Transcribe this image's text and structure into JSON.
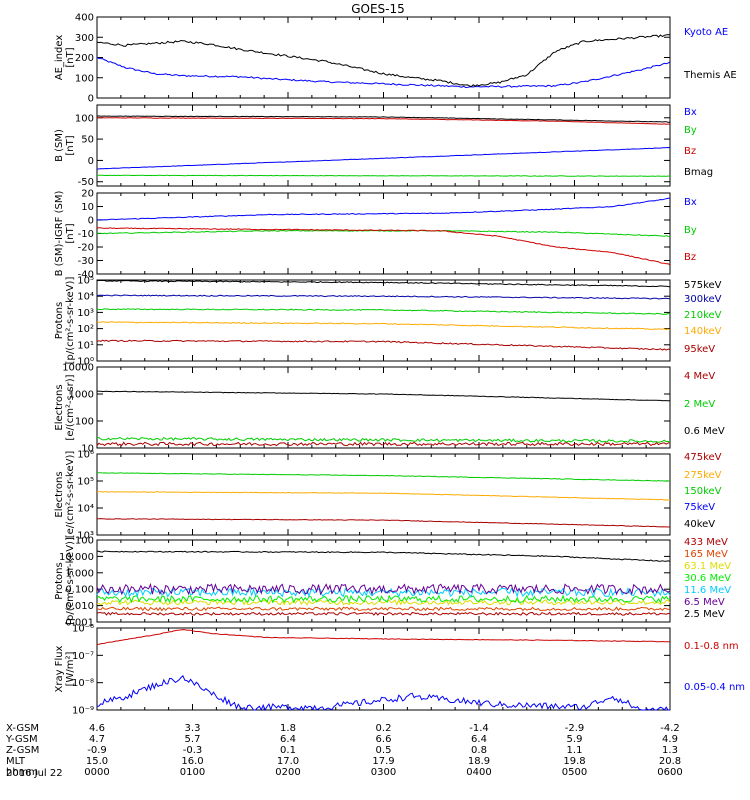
{
  "title": "GOES-15",
  "date_label": "2016 Jul 22",
  "colors": {
    "black": "#000000",
    "blue": "#0000ff",
    "red": "#cc0000",
    "green": "#00cc00",
    "orange": "#ffaa00",
    "darkblue": "#0000aa",
    "lime": "#00ee00",
    "cyan": "#00ccff",
    "yellow": "#dddd00",
    "purple": "#660099",
    "maroon": "#aa0000"
  },
  "chart_data": [
    {
      "type": "line",
      "id": "ae",
      "ylabel": "AE_index\n[nT]",
      "scale": "linear",
      "ylim": [
        0,
        400
      ],
      "yticks": [
        [
          0,
          "0"
        ],
        [
          100,
          "100"
        ],
        [
          200,
          "200"
        ],
        [
          300,
          "300"
        ],
        [
          400,
          "400"
        ]
      ],
      "series": [
        {
          "name": "Kyoto AE",
          "color": "#0000ff",
          "noise": 4,
          "values": [
            [
              0,
              200
            ],
            [
              5,
              150
            ],
            [
              10,
              120
            ],
            [
              15,
              110
            ],
            [
              25,
              105
            ],
            [
              30,
              95
            ],
            [
              40,
              80
            ],
            [
              50,
              70
            ],
            [
              60,
              60
            ],
            [
              65,
              55
            ],
            [
              75,
              58
            ],
            [
              80,
              60
            ],
            [
              85,
              80
            ],
            [
              90,
              110
            ],
            [
              95,
              140
            ],
            [
              100,
              175
            ]
          ]
        },
        {
          "name": "Themis AE",
          "color": "#000000",
          "noise": 5,
          "values": [
            [
              0,
              275
            ],
            [
              5,
              260
            ],
            [
              15,
              280
            ],
            [
              20,
              265
            ],
            [
              25,
              240
            ],
            [
              30,
              220
            ],
            [
              35,
              200
            ],
            [
              40,
              180
            ],
            [
              45,
              150
            ],
            [
              50,
              120
            ],
            [
              55,
              100
            ],
            [
              60,
              85
            ],
            [
              65,
              60
            ],
            [
              70,
              75
            ],
            [
              75,
              115
            ],
            [
              80,
              230
            ],
            [
              85,
              280
            ],
            [
              90,
              290
            ],
            [
              95,
              300
            ],
            [
              100,
              310
            ]
          ]
        }
      ]
    },
    {
      "type": "line",
      "id": "bsm",
      "ylabel": "B (SM)\n[nT]",
      "scale": "linear",
      "ylim": [
        -60,
        130
      ],
      "yticks": [
        [
          -50,
          "-50"
        ],
        [
          0,
          "0"
        ],
        [
          50,
          "50"
        ],
        [
          100,
          "100"
        ]
      ],
      "series": [
        {
          "name": "Bx",
          "color": "#0000ff",
          "noise": 0.5,
          "values": [
            [
              0,
              -20
            ],
            [
              50,
              5
            ],
            [
              100,
              30
            ]
          ]
        },
        {
          "name": "By",
          "color": "#00cc00",
          "noise": 0.5,
          "values": [
            [
              0,
              -35
            ],
            [
              50,
              -36
            ],
            [
              100,
              -37
            ]
          ]
        },
        {
          "name": "Bz",
          "color": "#cc0000",
          "noise": 0.5,
          "values": [
            [
              0,
              100
            ],
            [
              50,
              98
            ],
            [
              80,
              92
            ],
            [
              100,
              85
            ]
          ]
        },
        {
          "name": "Bmag",
          "color": "#000000",
          "noise": 0.5,
          "values": [
            [
              0,
              104
            ],
            [
              50,
              102
            ],
            [
              80,
              95
            ],
            [
              100,
              90
            ]
          ]
        }
      ]
    },
    {
      "type": "line",
      "id": "digrf",
      "ylabel": "B (SM)-IGRF (SM)\n[nT]",
      "scale": "linear",
      "ylim": [
        -40,
        20
      ],
      "yticks": [
        [
          -40,
          "-40"
        ],
        [
          -30,
          "-30"
        ],
        [
          -20,
          "-20"
        ],
        [
          -10,
          "-10"
        ],
        [
          0,
          "0"
        ],
        [
          10,
          "10"
        ],
        [
          20,
          "20"
        ]
      ],
      "series": [
        {
          "name": "Bx",
          "color": "#0000ff",
          "noise": 0.3,
          "values": [
            [
              0,
              0
            ],
            [
              30,
              4
            ],
            [
              60,
              5
            ],
            [
              80,
              8
            ],
            [
              90,
              10
            ],
            [
              100,
              16
            ]
          ]
        },
        {
          "name": "By",
          "color": "#00cc00",
          "noise": 0.3,
          "values": [
            [
              0,
              -10
            ],
            [
              30,
              -8
            ],
            [
              60,
              -8
            ],
            [
              80,
              -9
            ],
            [
              100,
              -12
            ]
          ]
        },
        {
          "name": "Bz",
          "color": "#cc0000",
          "noise": 0.3,
          "values": [
            [
              0,
              -6
            ],
            [
              30,
              -7
            ],
            [
              60,
              -8
            ],
            [
              70,
              -12
            ],
            [
              80,
              -20
            ],
            [
              90,
              -24
            ],
            [
              100,
              -33
            ]
          ]
        }
      ]
    },
    {
      "type": "line",
      "id": "protons_kev",
      "ylabel": "Protons\n[p/(cm²-s-sr-keV)]",
      "scale": "log",
      "ylim": [
        0,
        5
      ],
      "yticks": [
        [
          0,
          "10⁰"
        ],
        [
          1,
          "10¹"
        ],
        [
          2,
          "10²"
        ],
        [
          3,
          "10³"
        ],
        [
          4,
          "10⁴"
        ],
        [
          5,
          "10⁵"
        ]
      ],
      "series": [
        {
          "name": "575keV",
          "color": "#000000",
          "noise": 0.03,
          "values": [
            [
              0,
              4.95
            ],
            [
              50,
              4.85
            ],
            [
              100,
              4.6
            ]
          ]
        },
        {
          "name": "300keV",
          "color": "#0000aa",
          "noise": 0.03,
          "values": [
            [
              0,
              4.05
            ],
            [
              50,
              4.0
            ],
            [
              100,
              3.85
            ]
          ]
        },
        {
          "name": "210keV",
          "color": "#00cc00",
          "noise": 0.03,
          "values": [
            [
              0,
              3.2
            ],
            [
              50,
              3.15
            ],
            [
              100,
              2.9
            ]
          ]
        },
        {
          "name": "140keV",
          "color": "#ffaa00",
          "noise": 0.03,
          "values": [
            [
              0,
              2.4
            ],
            [
              50,
              2.3
            ],
            [
              100,
              1.95
            ]
          ]
        },
        {
          "name": "95keV",
          "color": "#aa0000",
          "noise": 0.04,
          "values": [
            [
              0,
              1.25
            ],
            [
              50,
              1.2
            ],
            [
              100,
              0.7
            ]
          ]
        }
      ]
    },
    {
      "type": "line",
      "id": "electrons_mev",
      "ylabel": "Electrons\n[e/(cm²-s-sr)]",
      "scale": "log",
      "ylim": [
        1,
        4
      ],
      "yticks": [
        [
          1,
          "10"
        ],
        [
          2,
          "100"
        ],
        [
          3,
          "1000"
        ],
        [
          4,
          "10000"
        ]
      ],
      "series": [
        {
          "name": "4 MeV",
          "color": "#aa0000",
          "noise": 0.06,
          "values": [
            [
              0,
              1.15
            ],
            [
              100,
              1.15
            ]
          ]
        },
        {
          "name": "2 MeV",
          "color": "#00cc00",
          "noise": 0.05,
          "values": [
            [
              0,
              1.35
            ],
            [
              100,
              1.25
            ]
          ]
        },
        {
          "name": "0.6 MeV",
          "color": "#000000",
          "noise": 0.01,
          "values": [
            [
              0,
              3.1
            ],
            [
              50,
              3.0
            ],
            [
              100,
              2.75
            ]
          ]
        }
      ]
    },
    {
      "type": "line",
      "id": "electrons_kev",
      "ylabel": "Electrons\n[e/(cm²-s-sr-keV)]",
      "scale": "log",
      "ylim": [
        3,
        6
      ],
      "yticks": [
        [
          3,
          "10³"
        ],
        [
          4,
          "10⁴"
        ],
        [
          5,
          "10⁵"
        ],
        [
          6,
          "10⁶"
        ]
      ],
      "series": [
        {
          "name": "475keV",
          "color": "#aa0000",
          "noise": 0.01,
          "values": [
            [
              0,
              3.6
            ],
            [
              50,
              3.55
            ],
            [
              100,
              3.3
            ]
          ]
        },
        {
          "name": "275keV",
          "color": "#ffaa00",
          "noise": 0.01,
          "values": [
            [
              0,
              4.6
            ],
            [
              50,
              4.55
            ],
            [
              100,
              4.3
            ]
          ]
        },
        {
          "name": "150keV",
          "color": "#00cc00",
          "noise": 0.01,
          "values": [
            [
              0,
              5.3
            ],
            [
              50,
              5.2
            ],
            [
              100,
              5.0
            ]
          ]
        },
        {
          "name": "75keV",
          "color": "#0000ff",
          "noise": 0.01,
          "values": []
        },
        {
          "name": "40keV",
          "color": "#000000",
          "noise": 0.01,
          "values": []
        }
      ]
    },
    {
      "type": "line",
      "id": "protons_mev",
      "ylabel": "Protons\n[p/(cm²-s-sr-keV)]",
      "scale": "log",
      "ylim": [
        -3,
        2
      ],
      "yticks": [
        [
          -3,
          "0.001"
        ],
        [
          -2,
          "0.010"
        ],
        [
          -1,
          "0.100"
        ],
        [
          0,
          "1.000"
        ],
        [
          1,
          "10.000"
        ],
        [
          2,
          "100"
        ]
      ],
      "series": [
        {
          "name": "433 MeV",
          "color": "#aa0000",
          "noise": 0.08,
          "values": [
            [
              0,
              -2.5
            ],
            [
              100,
              -2.5
            ]
          ]
        },
        {
          "name": "165 MeV",
          "color": "#dd4400",
          "noise": 0.1,
          "values": [
            [
              0,
              -2.2
            ],
            [
              100,
              -2.2
            ]
          ]
        },
        {
          "name": "63.1 MeV",
          "color": "#dddd00",
          "noise": 0.15,
          "values": [
            [
              0,
              -1.8
            ],
            [
              100,
              -1.8
            ]
          ]
        },
        {
          "name": "30.6 MeV",
          "color": "#00ee00",
          "noise": 0.2,
          "values": [
            [
              0,
              -1.6
            ],
            [
              100,
              -1.6
            ]
          ]
        },
        {
          "name": "11.6 MeV",
          "color": "#00ccff",
          "noise": 0.25,
          "values": [
            [
              0,
              -1.2
            ],
            [
              100,
              -1.2
            ]
          ]
        },
        {
          "name": "6.5 MeV",
          "color": "#660099",
          "noise": 0.3,
          "values": [
            [
              0,
              -1.0
            ],
            [
              100,
              -1.0
            ]
          ]
        },
        {
          "name": "2.5 MeV",
          "color": "#000000",
          "noise": 0.03,
          "values": [
            [
              0,
              1.3
            ],
            [
              50,
              1.25
            ],
            [
              80,
              1.0
            ],
            [
              100,
              0.7
            ]
          ]
        }
      ]
    },
    {
      "type": "line",
      "id": "xray",
      "ylabel": "Xray Flux\n[W/m²]",
      "scale": "log",
      "ylim": [
        -9,
        -6
      ],
      "yticks": [
        [
          -9,
          "10⁻⁹"
        ],
        [
          -8,
          "10⁻⁸"
        ],
        [
          -7,
          "10⁻⁷"
        ],
        [
          -6,
          "10⁻⁶"
        ]
      ],
      "series": [
        {
          "name": "0.1-0.8 nm",
          "color": "#cc0000",
          "noise": 0.01,
          "values": [
            [
              0,
              -6.6
            ],
            [
              10,
              -6.25
            ],
            [
              15,
              -6.05
            ],
            [
              20,
              -6.2
            ],
            [
              30,
              -6.35
            ],
            [
              50,
              -6.4
            ],
            [
              80,
              -6.45
            ],
            [
              100,
              -6.5
            ]
          ]
        },
        {
          "name": "0.05-0.4 nm",
          "color": "#0000ff",
          "noise": 0.12,
          "values": [
            [
              0,
              -8.8
            ],
            [
              5,
              -8.5
            ],
            [
              10,
              -8.1
            ],
            [
              15,
              -7.8
            ],
            [
              20,
              -8.4
            ],
            [
              25,
              -8.9
            ],
            [
              40,
              -8.9
            ],
            [
              55,
              -8.5
            ],
            [
              70,
              -8.8
            ],
            [
              85,
              -8.9
            ],
            [
              90,
              -8.5
            ],
            [
              95,
              -9.0
            ],
            [
              100,
              -9.0
            ]
          ]
        }
      ]
    }
  ],
  "x_axis": {
    "row_labels": [
      "X-GSM",
      "Y-GSM",
      "Z-GSM",
      "MLT",
      "hhmm"
    ],
    "columns": [
      [
        "4.6",
        "4.7",
        "-0.9",
        "15.0",
        "0000"
      ],
      [
        "3.3",
        "5.7",
        "-0.3",
        "16.0",
        "0100"
      ],
      [
        "1.8",
        "6.4",
        "0.1",
        "17.0",
        "0200"
      ],
      [
        "0.2",
        "6.6",
        "0.5",
        "17.9",
        "0300"
      ],
      [
        "-1.4",
        "6.4",
        "0.8",
        "18.9",
        "0400"
      ],
      [
        "-2.9",
        "5.9",
        "1.1",
        "19.8",
        "0500"
      ],
      [
        "-4.2",
        "4.9",
        "1.3",
        "20.8",
        "0600"
      ]
    ]
  }
}
